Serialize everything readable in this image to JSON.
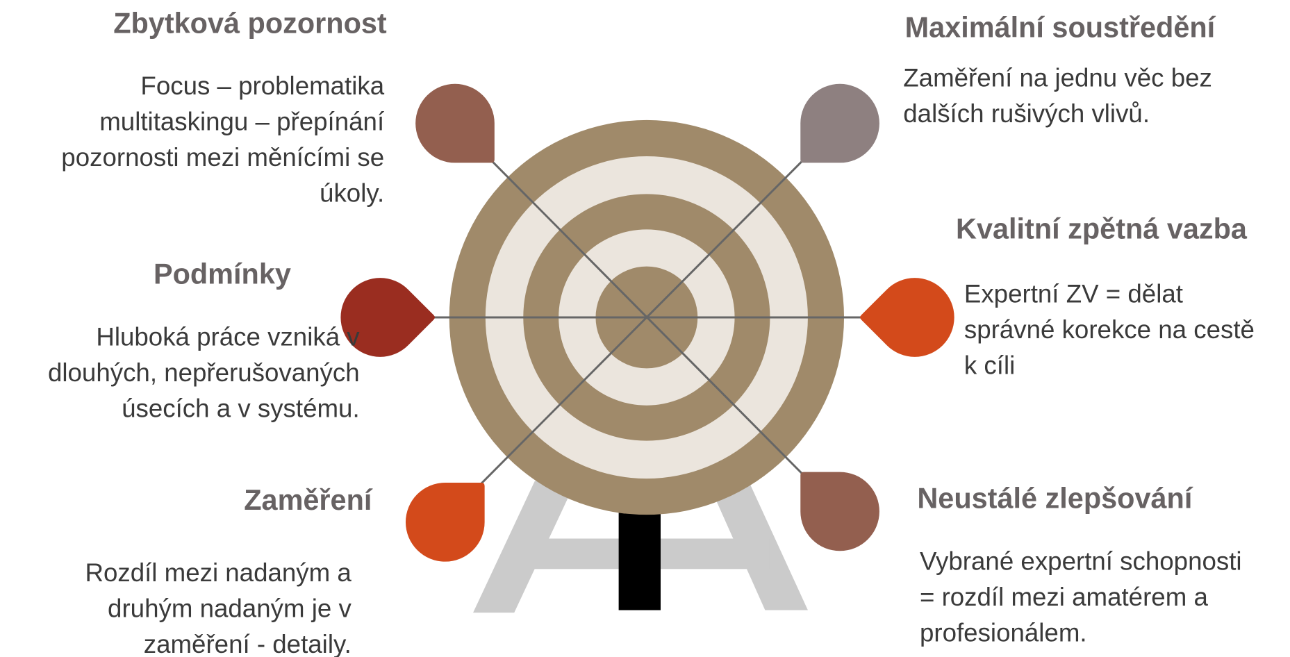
{
  "items": [
    {
      "title": "Zbytková pozornost",
      "lines": [
        "Focus – problematika",
        "multitaskingu – přepínání",
        "pozornosti mezi měnícími se",
        "úkoly."
      ]
    },
    {
      "title": "Podmínky",
      "lines": [
        "Hluboká práce vzniká v",
        "dlouhých, nepřerušovaných",
        "úsecích a v systému."
      ]
    },
    {
      "title": "Zaměření",
      "lines": [
        "Rozdíl mezi nadaným a",
        "druhým nadaným je v",
        "zaměření - detaily."
      ]
    },
    {
      "title": "Maximální soustředění",
      "lines": [
        "Zaměření na jednu věc bez",
        "dalších rušivých vlivů."
      ]
    },
    {
      "title": "Kvalitní zpětná vazba",
      "lines": [
        "Expertní ZV = dělat",
        "správné korekce na cestě",
        "k cíli"
      ]
    },
    {
      "title": "Neustálé zlepšování",
      "lines": [
        "Vybrané expertní schopnosti",
        "= rozdíl mezi amatérem a",
        "profesionálem."
      ]
    }
  ]
}
